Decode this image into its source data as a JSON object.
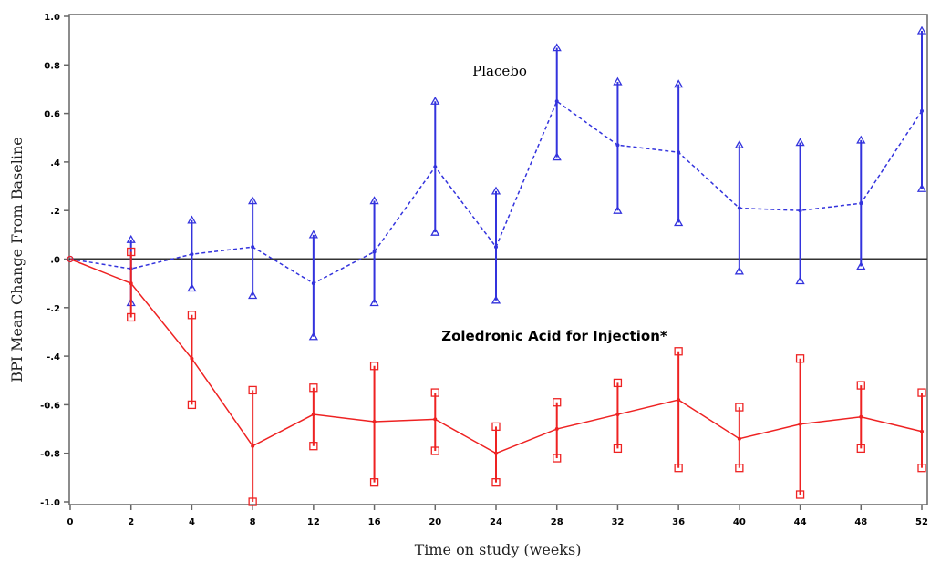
{
  "chart_data": {
    "type": "line",
    "xlabel": "Time on study (weeks)",
    "ylabel": "BPI Mean Change From Baseline",
    "ylim": [
      -1.05,
      1.02
    ],
    "y_ticks": [
      {
        "value": 1.0,
        "label": "1.0"
      },
      {
        "value": 0.8,
        "label": "0.8"
      },
      {
        "value": 0.6,
        "label": "0.6"
      },
      {
        "value": 0.4,
        "label": ".4"
      },
      {
        "value": 0.2,
        "label": ".2"
      },
      {
        "value": 0.0,
        "label": ".0"
      },
      {
        "value": -0.2,
        "label": "-.2"
      },
      {
        "value": -0.4,
        "label": "-.4"
      },
      {
        "value": -0.6,
        "label": "-0.6"
      },
      {
        "value": -0.8,
        "label": "-0.8"
      },
      {
        "value": -1.0,
        "label": "-1.0"
      }
    ],
    "categories": [
      "0",
      "2",
      "4",
      "8",
      "12",
      "16",
      "20",
      "24",
      "28",
      "32",
      "36",
      "40",
      "44",
      "48",
      "52"
    ],
    "series": [
      {
        "label": "Placebo",
        "color": "#3333dd",
        "marker": "triangle",
        "line_style": "dashed",
        "values": [
          0.0,
          -0.04,
          0.02,
          0.05,
          -0.1,
          0.03,
          0.38,
          0.05,
          0.65,
          0.47,
          0.44,
          0.21,
          0.2,
          0.23,
          0.61
        ],
        "upper": [
          0.0,
          0.08,
          0.16,
          0.24,
          0.1,
          0.24,
          0.65,
          0.28,
          0.87,
          0.73,
          0.72,
          0.47,
          0.48,
          0.49,
          0.94
        ],
        "lower": [
          0.0,
          -0.18,
          -0.12,
          -0.15,
          -0.32,
          -0.18,
          0.11,
          -0.17,
          0.42,
          0.2,
          0.15,
          -0.05,
          -0.09,
          -0.03,
          0.29
        ]
      },
      {
        "label": "Zoledronic Acid for Injection*",
        "color": "#ee2222",
        "marker": "square",
        "line_style": "solid",
        "values": [
          0.0,
          -0.1,
          -0.41,
          -0.77,
          -0.64,
          -0.67,
          -0.66,
          -0.8,
          -0.7,
          -0.64,
          -0.58,
          -0.74,
          -0.68,
          -0.65,
          -0.71
        ],
        "upper": [
          0.0,
          0.03,
          -0.23,
          -0.54,
          -0.53,
          -0.44,
          -0.55,
          -0.69,
          -0.59,
          -0.51,
          -0.38,
          -0.61,
          -0.41,
          -0.52,
          -0.55
        ],
        "lower": [
          0.0,
          -0.24,
          -0.6,
          -1.0,
          -0.77,
          -0.92,
          -0.79,
          -0.92,
          -0.82,
          -0.78,
          -0.86,
          -0.86,
          -0.97,
          -0.78,
          -0.86
        ]
      }
    ]
  },
  "colors": {
    "placebo": "#3333dd",
    "zoledronic": "#ee2222",
    "frame": "#666666",
    "zero_line": "#333333"
  }
}
